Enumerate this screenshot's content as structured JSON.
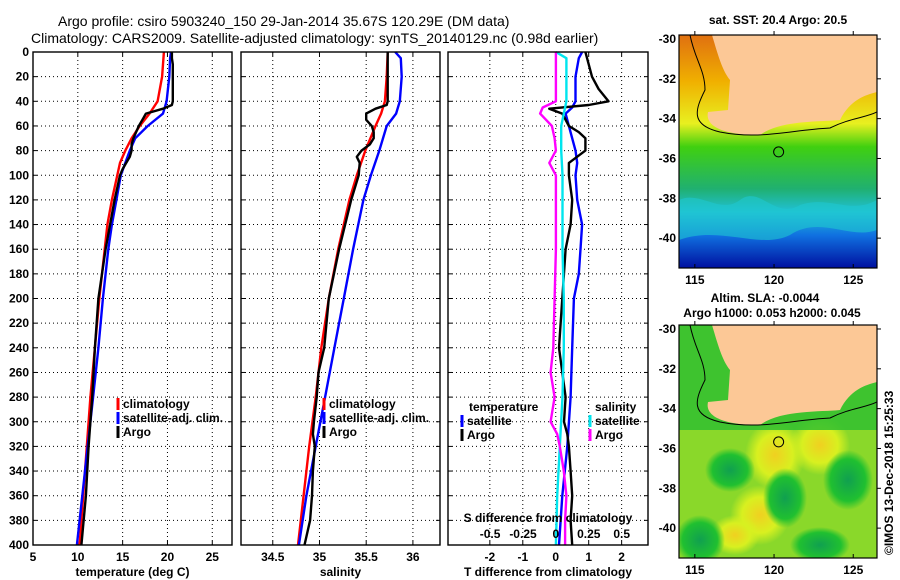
{
  "header": {
    "line1": "Argo profile: csiro 5903240_150 29-Jan-2014 35.67S 120.29E (DM data)",
    "line2": "Climatology: CARS2009. Satellite-adjusted climatology: synTS_20140129.nc (0.98d earlier)"
  },
  "colors": {
    "climatology": "#ff0000",
    "satellite": "#0000ff",
    "argo": "#000000",
    "salinity_satellite": "#00e5ee",
    "salinity_argo": "#ff00ff",
    "land": "#fcc896"
  },
  "chart_data": [
    {
      "type": "line",
      "id": "temperature",
      "xlabel": "temperature (deg C)",
      "ylabel": "",
      "xlim": [
        5,
        27.2
      ],
      "ylim": [
        400,
        0
      ],
      "xticks": [
        5,
        10,
        15,
        20,
        25
      ],
      "yticks": [
        0,
        20,
        40,
        60,
        80,
        100,
        120,
        140,
        160,
        180,
        200,
        220,
        240,
        260,
        280,
        300,
        320,
        340,
        360,
        380,
        400
      ],
      "grid": true,
      "legend": {
        "position": "middle-right",
        "entries": [
          "climatology",
          "satellite-adj. clim.",
          "Argo"
        ]
      },
      "series": [
        {
          "name": "climatology",
          "color_key": "climatology",
          "depth": [
            0,
            20,
            40,
            50,
            60,
            70,
            80,
            90,
            100,
            120,
            140,
            160,
            200,
            240,
            280,
            320,
            360,
            400
          ],
          "values": [
            19.6,
            19.4,
            18.9,
            18.0,
            16.9,
            16.0,
            15.3,
            14.7,
            14.4,
            13.8,
            13.3,
            13.0,
            12.4,
            11.9,
            11.4,
            11.0,
            10.6,
            10.2
          ]
        },
        {
          "name": "satellite-adj. clim.",
          "color_key": "satellite",
          "depth": [
            0,
            5,
            20,
            40,
            50,
            60,
            70,
            80,
            90,
            100,
            120,
            140,
            160,
            200,
            240,
            280,
            320,
            360,
            400
          ],
          "values": [
            20.4,
            20.3,
            20.2,
            19.9,
            19.5,
            17.8,
            16.4,
            15.8,
            15.3,
            14.8,
            14.3,
            13.8,
            13.4,
            12.8,
            12.3,
            11.7,
            11.1,
            10.5,
            9.9
          ]
        },
        {
          "name": "Argo",
          "color_key": "argo",
          "depth": [
            0,
            5,
            10,
            20,
            30,
            40,
            43,
            46,
            50,
            55,
            60,
            65,
            70,
            75,
            80,
            85,
            90,
            95,
            100,
            120,
            140,
            160,
            200,
            240,
            280,
            320,
            360,
            400
          ],
          "values": [
            20.5,
            20.5,
            20.6,
            20.6,
            20.6,
            20.6,
            20.5,
            19.5,
            17.6,
            17.2,
            16.8,
            16.5,
            16.2,
            16.0,
            16.0,
            15.8,
            15.4,
            15.0,
            14.7,
            14.1,
            13.6,
            13.1,
            12.3,
            11.9,
            11.6,
            11.2,
            10.9,
            10.4
          ]
        }
      ]
    },
    {
      "type": "line",
      "id": "salinity",
      "xlabel": "salinity",
      "xlim": [
        34.16,
        36.29
      ],
      "ylim": [
        400,
        0
      ],
      "xticks": [
        34.5,
        35,
        35.5,
        36
      ],
      "grid": true,
      "legend": {
        "position": "middle-right",
        "entries": [
          "climatology",
          "satellite-adj. clim.",
          "Argo"
        ]
      },
      "series": [
        {
          "name": "climatology",
          "color_key": "climatology",
          "depth": [
            0,
            20,
            40,
            50,
            60,
            80,
            100,
            120,
            160,
            200,
            240,
            280,
            320,
            360,
            400
          ],
          "values": [
            35.73,
            35.72,
            35.7,
            35.66,
            35.6,
            35.49,
            35.4,
            35.32,
            35.2,
            35.1,
            35.02,
            34.96,
            34.89,
            34.83,
            34.77
          ]
        },
        {
          "name": "satellite-adj. clim.",
          "color_key": "satellite",
          "depth": [
            0,
            5,
            20,
            40,
            50,
            60,
            80,
            100,
            120,
            160,
            200,
            240,
            280,
            320,
            360,
            400
          ],
          "values": [
            35.81,
            35.87,
            35.88,
            35.86,
            35.82,
            35.72,
            35.64,
            35.55,
            35.47,
            35.36,
            35.26,
            35.16,
            35.06,
            34.96,
            34.86,
            34.78
          ]
        },
        {
          "name": "Argo",
          "color_key": "argo",
          "depth": [
            0,
            10,
            20,
            30,
            40,
            43,
            46,
            50,
            55,
            60,
            65,
            70,
            75,
            80,
            85,
            90,
            100,
            120,
            160,
            200,
            240,
            260,
            280,
            300,
            310,
            320,
            340,
            360,
            380,
            400
          ],
          "values": [
            35.73,
            35.73,
            35.73,
            35.73,
            35.73,
            35.72,
            35.6,
            35.5,
            35.5,
            35.56,
            35.58,
            35.58,
            35.54,
            35.45,
            35.4,
            35.43,
            35.42,
            35.34,
            35.21,
            35.1,
            35.05,
            34.99,
            34.97,
            34.94,
            34.93,
            34.95,
            34.93,
            34.92,
            34.9,
            34.84
          ]
        }
      ]
    },
    {
      "type": "line",
      "id": "difference",
      "xlabel": "T difference from climatology",
      "xlim": [
        -3.27,
        2.8
      ],
      "xticks": [
        -2,
        -1,
        0,
        1,
        2
      ],
      "secondary_xlabel": "S difference from climatology",
      "secondary_xticks": [
        -0.5,
        -0.25,
        0,
        0.25,
        0.5
      ],
      "secondary_xlim": [
        -0.82,
        0.7
      ],
      "ylim": [
        400,
        0
      ],
      "grid": true,
      "legend": {
        "position": "lower-middle",
        "groups": [
          {
            "title": "temperature",
            "entries": [
              "satellite",
              "Argo"
            ]
          },
          {
            "title": "salinity",
            "entries": [
              "satellite",
              "Argo"
            ]
          }
        ]
      },
      "series": [
        {
          "name": "temperature satellite",
          "axis": "T",
          "color_key": "satellite",
          "depth": [
            0,
            5,
            20,
            40,
            45,
            50,
            60,
            70,
            80,
            90,
            100,
            120,
            140,
            160,
            180,
            200,
            240,
            280,
            320,
            360,
            400
          ],
          "values": [
            0.8,
            0.7,
            0.6,
            0.6,
            0.5,
            0.3,
            0.4,
            0.5,
            0.6,
            0.65,
            0.6,
            0.65,
            0.8,
            0.75,
            0.7,
            0.55,
            0.5,
            0.45,
            0.35,
            0.2,
            0.1
          ]
        },
        {
          "name": "temperature Argo",
          "axis": "T",
          "color_key": "argo",
          "depth": [
            0,
            10,
            20,
            30,
            40,
            43,
            46,
            50,
            55,
            60,
            65,
            70,
            80,
            90,
            100,
            120,
            140,
            160,
            200,
            240,
            280,
            300,
            310,
            320,
            340,
            360,
            380,
            400
          ],
          "values": [
            0.9,
            1.0,
            1.1,
            1.3,
            1.6,
            1.0,
            -0.2,
            0.2,
            0.3,
            0.4,
            0.7,
            0.9,
            0.9,
            0.4,
            0.4,
            0.5,
            0.45,
            0.3,
            0.2,
            0.1,
            0.3,
            0.25,
            0.35,
            0.4,
            0.45,
            0.5,
            0.45,
            0.5
          ]
        },
        {
          "name": "salinity satellite",
          "axis": "S",
          "color_key": "salinity_satellite",
          "depth": [
            0,
            5,
            40,
            60,
            80,
            100,
            160,
            200,
            240,
            280,
            320,
            360,
            400
          ],
          "values": [
            0.0,
            0.08,
            0.08,
            0.04,
            0.04,
            0.05,
            0.05,
            0.06,
            0.06,
            0.05,
            0.03,
            0.01,
            0.0
          ]
        },
        {
          "name": "salinity Argo",
          "axis": "S",
          "color_key": "salinity_argo",
          "depth": [
            0,
            20,
            40,
            45,
            50,
            60,
            70,
            80,
            90,
            100,
            160,
            200,
            240,
            260,
            280,
            300,
            310,
            320,
            340,
            360,
            380,
            400
          ],
          "values": [
            0.0,
            0.0,
            0.0,
            -0.1,
            -0.12,
            -0.03,
            -0.01,
            0.0,
            -0.05,
            0.0,
            0.0,
            -0.01,
            -0.02,
            -0.04,
            -0.01,
            -0.04,
            0.01,
            0.03,
            0.06,
            0.08,
            0.07,
            0.07
          ]
        }
      ]
    },
    {
      "type": "heatmap",
      "id": "sst-map",
      "title": "sat. SST: 20.4 Argo: 20.5",
      "xlim": [
        114,
        126.5
      ],
      "ylim": [
        -41.5,
        -29.8
      ],
      "xticks": [
        115,
        120,
        125
      ],
      "yticks": [
        -30,
        -32,
        -34,
        -36,
        -38,
        -40
      ],
      "marker": {
        "lon": 120.29,
        "lat": -35.67
      }
    },
    {
      "type": "heatmap",
      "id": "sla-map",
      "title": "Altim. SLA: -0.0044",
      "subtitle": "Argo h1000: 0.053 h2000: 0.045",
      "xlim": [
        114,
        126.5
      ],
      "ylim": [
        -41.5,
        -29.8
      ],
      "xticks": [
        115,
        120,
        125
      ],
      "yticks": [
        -30,
        -32,
        -34,
        -36,
        -38,
        -40
      ],
      "marker": {
        "lon": 120.29,
        "lat": -35.67
      }
    }
  ],
  "watermark": "©IMOS 13-Dec-2018 15:25:33"
}
